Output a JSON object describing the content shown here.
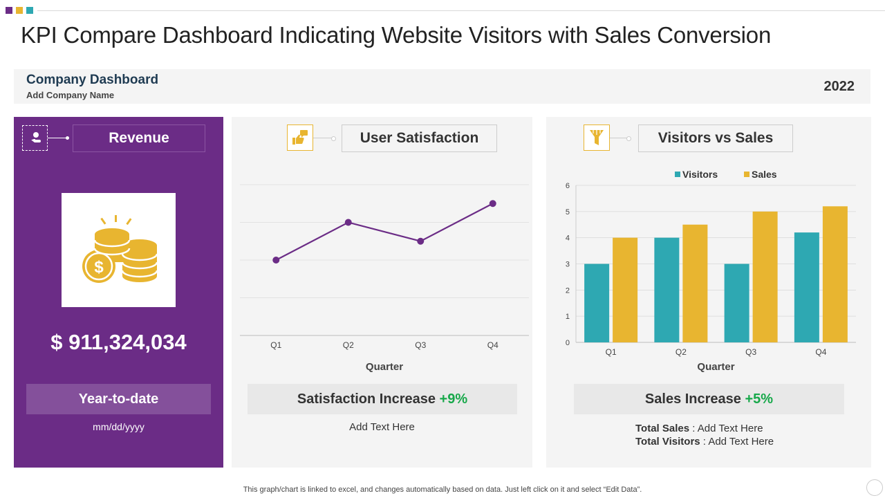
{
  "colors": {
    "purple": "#6b2c86",
    "yellow": "#e8b530",
    "teal": "#2ea8b2",
    "green": "#17a84a"
  },
  "title": "KPI Compare Dashboard Indicating Website Visitors with Sales Conversion",
  "company": {
    "name": "Company Dashboard",
    "sub": "Add Company Name",
    "year": "2022"
  },
  "revenue": {
    "icon": "user-hand-icon",
    "label": "Revenue",
    "value": "$ 911,324,034",
    "period_label": "Year-to-date",
    "date": "mm/dd/yyyy",
    "image": "gold-coins-icon"
  },
  "satisfaction": {
    "icon": "thumbs-up-chat-icon",
    "label": "User Satisfaction",
    "kpi_label": "Satisfaction Increase",
    "kpi_pct": "+9%",
    "note": "Add Text Here"
  },
  "visitors_sales": {
    "icon": "funnel-icon",
    "label": "Visitors vs Sales",
    "kpi_label": "Sales Increase",
    "kpi_pct": "+5%",
    "total_sales_label": "Total Sales",
    "total_sales_value": "Add Text Here",
    "total_visitors_label": "Total Visitors",
    "total_visitors_value": "Add Text Here"
  },
  "chart_data": [
    {
      "type": "line",
      "categories": [
        "Q1",
        "Q2",
        "Q3",
        "Q4"
      ],
      "values": [
        2,
        3,
        2.5,
        3.5
      ],
      "ylim": [
        0,
        4
      ],
      "xlabel": "Quarter",
      "grid": true,
      "color": "#6b2c86"
    },
    {
      "type": "bar",
      "categories": [
        "Q1",
        "Q2",
        "Q3",
        "Q4"
      ],
      "series": [
        {
          "name": "Visitors",
          "values": [
            3,
            4,
            3,
            4.2
          ],
          "color": "#2ea8b2"
        },
        {
          "name": "Sales",
          "values": [
            4,
            4.5,
            5,
            5.2
          ],
          "color": "#e8b530"
        }
      ],
      "ylim": [
        0,
        6
      ],
      "yticks": [
        "0",
        "1",
        "2",
        "3",
        "4",
        "5",
        "6"
      ],
      "xlabel": "Quarter",
      "legend": "top",
      "grid": true
    }
  ],
  "footer": "This graph/chart is linked to excel,  and changes automatically based on data. Just left click on it and select “Edit Data”."
}
